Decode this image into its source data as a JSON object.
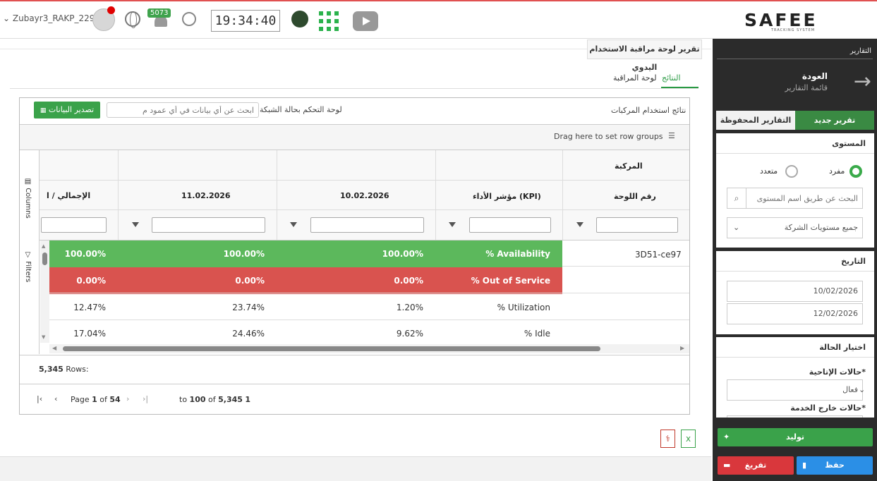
{
  "header": {
    "username": "Zubayr3_RAKP_229",
    "notification_count": "5073",
    "clock": "19:34:40",
    "logo_text": "SAFEE",
    "logo_sub": "TRACKING SYSTEM"
  },
  "sidebar": {
    "section_title": "التقارير",
    "back_label": "العودة",
    "back_sub": "قائمة التقارير",
    "tab_new": "تقرير جديد",
    "tab_saved": "التقارير المحفوظة",
    "level": {
      "title": "المستوى",
      "single": "مفرد",
      "multiple": "متعدد",
      "search_placeholder": "البحث عن طريق اسم المستوى",
      "select_value": "جميع مستويات الشركة"
    },
    "date": {
      "title": "التاريخ",
      "from": "10/02/2026",
      "to": "12/02/2026"
    },
    "status": {
      "title": "اختيار الحالة",
      "available_label": "حالات الإتاحية*",
      "available_value": "فعال",
      "out_label": "حالات خارج الخدمة*"
    },
    "buttons": {
      "generate": "توليد",
      "save": "حفظ",
      "clear": "تفريغ"
    }
  },
  "main": {
    "report_title": "تقرير لوحة مراقبة الاستخدام اليدوي",
    "tabs": [
      "النتائج",
      "لوحة المراقبة"
    ],
    "grid_title": "نتائج استخدام المركبات",
    "dashboard_label": "لوحة التحكم بحالة الشبكة",
    "search_placeholder": "ابحث عن أي بيانات في أي عمود م",
    "export_label": "تصدير البيانات",
    "drag_hint": "Drag here to set row groups",
    "side_columns": "Columns",
    "side_filters": "Filters",
    "group_header": "المركبة",
    "columns": [
      "رقم اللوحة",
      "مؤشر الأداء (KPI)",
      "10.02.2026",
      "11.02.2026",
      "الإجمالي / ا"
    ],
    "plate": "3D51-ce97",
    "rows": [
      {
        "kpi": "% Availability",
        "d1": "100.00%",
        "d2": "100.00%",
        "total": "100.00%",
        "color": "#5cb85c"
      },
      {
        "kpi": "% Out of Service",
        "d1": "0.00%",
        "d2": "0.00%",
        "total": "0.00%",
        "color": "#d9534f"
      },
      {
        "kpi": "% Utilization",
        "d1": "1.20%",
        "d2": "23.74%",
        "total": "12.47%",
        "color": "#ffffff"
      },
      {
        "kpi": "% Idle",
        "d1": "9.62%",
        "d2": "24.46%",
        "total": "17.04%",
        "color": "#ffffff"
      }
    ],
    "rows_count_label": "Rows:",
    "rows_count": "5,345",
    "pager": {
      "page_label": "Page",
      "page": "1",
      "of": "of",
      "total_pages": "54",
      "range_start": "1",
      "to": "to",
      "range_end": "100",
      "of2": "of",
      "total": "5,345"
    }
  }
}
